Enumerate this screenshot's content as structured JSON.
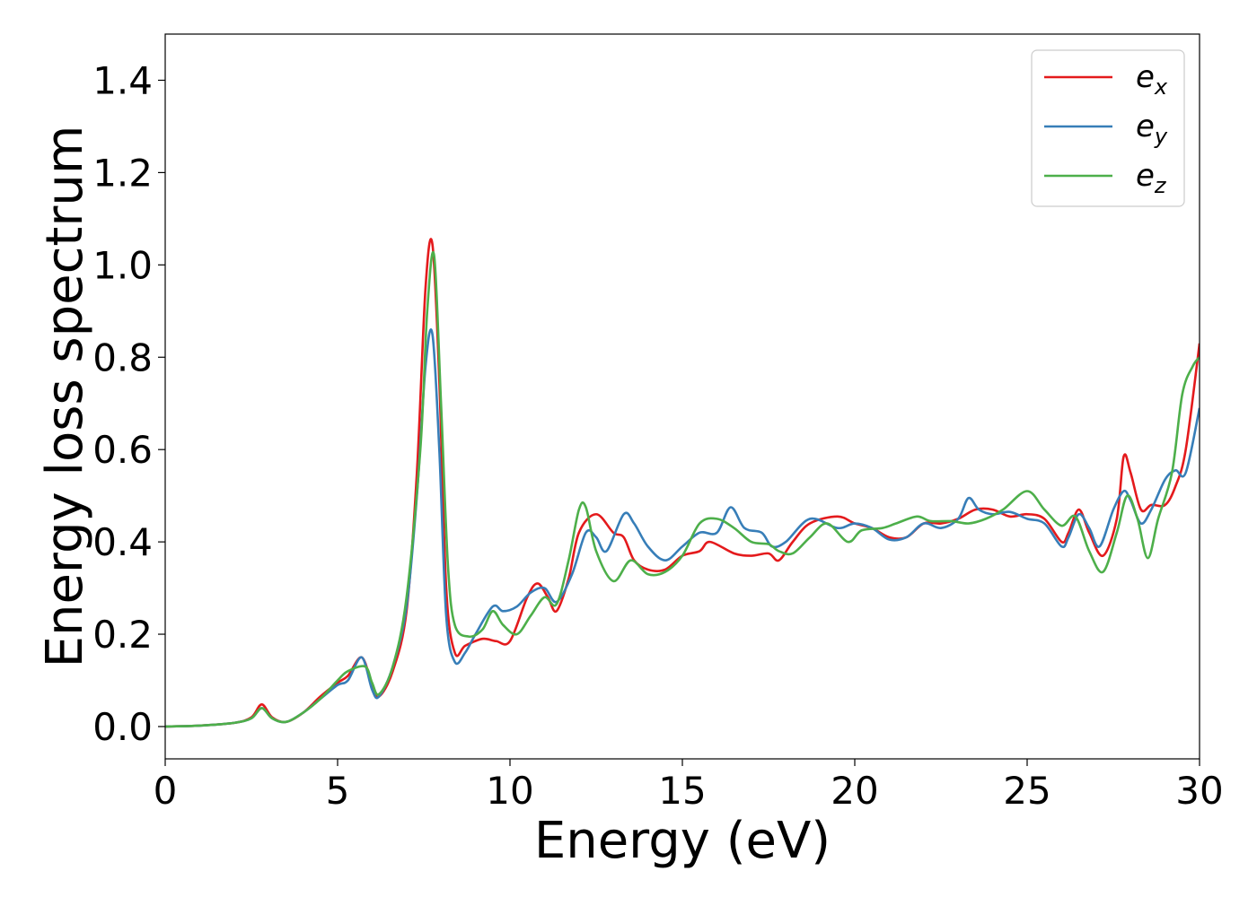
{
  "chart_data": {
    "type": "line",
    "title": "",
    "xlabel": "Energy (eV)",
    "ylabel": "Energy loss spectrum",
    "xlim": [
      0,
      30
    ],
    "ylim": [
      -0.07,
      1.5
    ],
    "xticks": [
      0,
      5,
      10,
      15,
      20,
      25,
      30
    ],
    "xtick_labels": [
      "0",
      "5",
      "10",
      "15",
      "20",
      "25",
      "30"
    ],
    "yticks": [
      0.0,
      0.2,
      0.4,
      0.6,
      0.8,
      1.0,
      1.2,
      1.4
    ],
    "ytick_labels": [
      "0.0",
      "0.2",
      "0.4",
      "0.6",
      "0.8",
      "1.0",
      "1.2",
      "1.4"
    ],
    "grid": false,
    "legend_position": "top-right",
    "series": [
      {
        "name": "e_x",
        "label_base": "e",
        "label_sub": "x",
        "color": "#e41a1c",
        "points": [
          [
            0,
            0
          ],
          [
            1,
            0.002
          ],
          [
            2,
            0.008
          ],
          [
            2.5,
            0.02
          ],
          [
            2.8,
            0.048
          ],
          [
            3.1,
            0.02
          ],
          [
            3.5,
            0.01
          ],
          [
            4,
            0.03
          ],
          [
            4.5,
            0.065
          ],
          [
            5,
            0.095
          ],
          [
            5.3,
            0.11
          ],
          [
            5.7,
            0.15
          ],
          [
            6.0,
            0.09
          ],
          [
            6.2,
            0.065
          ],
          [
            6.6,
            0.12
          ],
          [
            7.0,
            0.25
          ],
          [
            7.3,
            0.55
          ],
          [
            7.55,
            0.95
          ],
          [
            7.75,
            1.045
          ],
          [
            7.95,
            0.75
          ],
          [
            8.15,
            0.3
          ],
          [
            8.4,
            0.16
          ],
          [
            8.7,
            0.175
          ],
          [
            9.2,
            0.19
          ],
          [
            9.6,
            0.185
          ],
          [
            10.0,
            0.185
          ],
          [
            10.5,
            0.28
          ],
          [
            10.8,
            0.31
          ],
          [
            11.1,
            0.28
          ],
          [
            11.35,
            0.25
          ],
          [
            11.7,
            0.32
          ],
          [
            12.0,
            0.42
          ],
          [
            12.5,
            0.46
          ],
          [
            13.0,
            0.42
          ],
          [
            13.3,
            0.41
          ],
          [
            13.6,
            0.36
          ],
          [
            14.0,
            0.34
          ],
          [
            14.5,
            0.34
          ],
          [
            15.0,
            0.37
          ],
          [
            15.5,
            0.38
          ],
          [
            15.8,
            0.4
          ],
          [
            16.5,
            0.375
          ],
          [
            17.0,
            0.37
          ],
          [
            17.5,
            0.375
          ],
          [
            17.8,
            0.36
          ],
          [
            18.2,
            0.4
          ],
          [
            18.7,
            0.44
          ],
          [
            19.5,
            0.455
          ],
          [
            20.0,
            0.44
          ],
          [
            20.5,
            0.43
          ],
          [
            21.0,
            0.41
          ],
          [
            21.5,
            0.41
          ],
          [
            22.0,
            0.44
          ],
          [
            22.5,
            0.44
          ],
          [
            23.0,
            0.45
          ],
          [
            23.5,
            0.47
          ],
          [
            24.0,
            0.47
          ],
          [
            24.5,
            0.455
          ],
          [
            25.0,
            0.46
          ],
          [
            25.5,
            0.45
          ],
          [
            26.0,
            0.4
          ],
          [
            26.2,
            0.42
          ],
          [
            26.5,
            0.47
          ],
          [
            26.8,
            0.42
          ],
          [
            27.2,
            0.37
          ],
          [
            27.6,
            0.45
          ],
          [
            27.8,
            0.585
          ],
          [
            28.0,
            0.55
          ],
          [
            28.3,
            0.47
          ],
          [
            28.6,
            0.48
          ],
          [
            29.0,
            0.48
          ],
          [
            29.3,
            0.52
          ],
          [
            29.6,
            0.6
          ],
          [
            30.0,
            0.83
          ]
        ]
      },
      {
        "name": "e_y",
        "label_base": "e",
        "label_sub": "y",
        "color": "#377eb8",
        "points": [
          [
            0,
            0
          ],
          [
            1,
            0.002
          ],
          [
            2,
            0.008
          ],
          [
            2.5,
            0.018
          ],
          [
            2.8,
            0.04
          ],
          [
            3.1,
            0.018
          ],
          [
            3.5,
            0.01
          ],
          [
            4,
            0.03
          ],
          [
            4.5,
            0.06
          ],
          [
            5,
            0.09
          ],
          [
            5.3,
            0.1
          ],
          [
            5.7,
            0.15
          ],
          [
            6.0,
            0.08
          ],
          [
            6.2,
            0.065
          ],
          [
            6.6,
            0.13
          ],
          [
            7.0,
            0.26
          ],
          [
            7.3,
            0.5
          ],
          [
            7.55,
            0.78
          ],
          [
            7.75,
            0.85
          ],
          [
            7.95,
            0.6
          ],
          [
            8.15,
            0.24
          ],
          [
            8.4,
            0.14
          ],
          [
            8.7,
            0.16
          ],
          [
            9.0,
            0.2
          ],
          [
            9.5,
            0.26
          ],
          [
            9.8,
            0.25
          ],
          [
            10.2,
            0.26
          ],
          [
            10.6,
            0.29
          ],
          [
            11.0,
            0.3
          ],
          [
            11.35,
            0.27
          ],
          [
            11.8,
            0.33
          ],
          [
            12.2,
            0.42
          ],
          [
            12.5,
            0.41
          ],
          [
            12.8,
            0.38
          ],
          [
            13.3,
            0.46
          ],
          [
            13.6,
            0.44
          ],
          [
            14.0,
            0.39
          ],
          [
            14.5,
            0.36
          ],
          [
            15.0,
            0.39
          ],
          [
            15.5,
            0.42
          ],
          [
            16.0,
            0.42
          ],
          [
            16.4,
            0.475
          ],
          [
            16.8,
            0.43
          ],
          [
            17.3,
            0.42
          ],
          [
            17.6,
            0.39
          ],
          [
            18.0,
            0.4
          ],
          [
            18.7,
            0.45
          ],
          [
            19.5,
            0.43
          ],
          [
            20.0,
            0.44
          ],
          [
            20.5,
            0.43
          ],
          [
            21.0,
            0.405
          ],
          [
            21.5,
            0.41
          ],
          [
            22.0,
            0.44
          ],
          [
            22.5,
            0.43
          ],
          [
            23.0,
            0.45
          ],
          [
            23.3,
            0.495
          ],
          [
            23.6,
            0.47
          ],
          [
            24.0,
            0.46
          ],
          [
            24.5,
            0.465
          ],
          [
            25.0,
            0.45
          ],
          [
            25.5,
            0.44
          ],
          [
            26.0,
            0.39
          ],
          [
            26.2,
            0.41
          ],
          [
            26.5,
            0.46
          ],
          [
            26.8,
            0.43
          ],
          [
            27.1,
            0.39
          ],
          [
            27.5,
            0.47
          ],
          [
            27.8,
            0.51
          ],
          [
            28.0,
            0.49
          ],
          [
            28.3,
            0.44
          ],
          [
            28.6,
            0.47
          ],
          [
            29.0,
            0.535
          ],
          [
            29.3,
            0.555
          ],
          [
            29.6,
            0.55
          ],
          [
            30.0,
            0.69
          ]
        ]
      },
      {
        "name": "e_z",
        "label_base": "e",
        "label_sub": "z",
        "color": "#4daf4a",
        "points": [
          [
            0,
            0
          ],
          [
            1,
            0.002
          ],
          [
            2,
            0.008
          ],
          [
            2.5,
            0.018
          ],
          [
            2.8,
            0.04
          ],
          [
            3.1,
            0.018
          ],
          [
            3.5,
            0.01
          ],
          [
            4,
            0.03
          ],
          [
            4.5,
            0.06
          ],
          [
            5,
            0.1
          ],
          [
            5.3,
            0.12
          ],
          [
            5.8,
            0.13
          ],
          [
            6.0,
            0.095
          ],
          [
            6.2,
            0.07
          ],
          [
            6.6,
            0.13
          ],
          [
            7.0,
            0.28
          ],
          [
            7.4,
            0.6
          ],
          [
            7.6,
            0.9
          ],
          [
            7.8,
            1.02
          ],
          [
            8.0,
            0.7
          ],
          [
            8.2,
            0.35
          ],
          [
            8.4,
            0.22
          ],
          [
            8.8,
            0.195
          ],
          [
            9.2,
            0.21
          ],
          [
            9.5,
            0.25
          ],
          [
            9.8,
            0.22
          ],
          [
            10.2,
            0.2
          ],
          [
            10.6,
            0.24
          ],
          [
            11.0,
            0.28
          ],
          [
            11.35,
            0.265
          ],
          [
            11.7,
            0.36
          ],
          [
            12.0,
            0.47
          ],
          [
            12.2,
            0.475
          ],
          [
            12.5,
            0.38
          ],
          [
            13.0,
            0.315
          ],
          [
            13.5,
            0.36
          ],
          [
            14.0,
            0.33
          ],
          [
            14.5,
            0.335
          ],
          [
            15.0,
            0.37
          ],
          [
            15.5,
            0.44
          ],
          [
            16.0,
            0.45
          ],
          [
            16.5,
            0.43
          ],
          [
            17.0,
            0.4
          ],
          [
            17.5,
            0.395
          ],
          [
            17.8,
            0.38
          ],
          [
            18.2,
            0.375
          ],
          [
            18.7,
            0.41
          ],
          [
            19.2,
            0.44
          ],
          [
            19.8,
            0.4
          ],
          [
            20.2,
            0.425
          ],
          [
            20.8,
            0.43
          ],
          [
            21.2,
            0.44
          ],
          [
            21.8,
            0.455
          ],
          [
            22.2,
            0.445
          ],
          [
            22.8,
            0.445
          ],
          [
            23.3,
            0.44
          ],
          [
            23.8,
            0.45
          ],
          [
            24.3,
            0.47
          ],
          [
            25.0,
            0.51
          ],
          [
            25.5,
            0.47
          ],
          [
            26.0,
            0.435
          ],
          [
            26.4,
            0.455
          ],
          [
            26.8,
            0.38
          ],
          [
            27.2,
            0.335
          ],
          [
            27.6,
            0.42
          ],
          [
            27.9,
            0.5
          ],
          [
            28.2,
            0.45
          ],
          [
            28.5,
            0.365
          ],
          [
            28.8,
            0.45
          ],
          [
            29.2,
            0.55
          ],
          [
            29.5,
            0.72
          ],
          [
            29.8,
            0.78
          ],
          [
            30.0,
            0.8
          ]
        ]
      }
    ]
  }
}
